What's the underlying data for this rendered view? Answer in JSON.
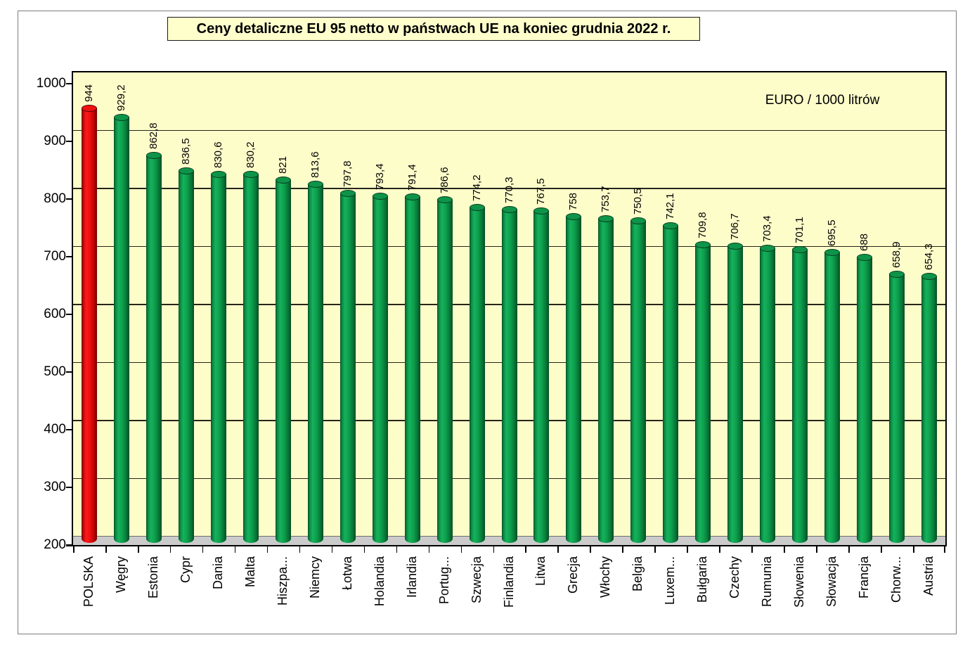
{
  "chart_data": {
    "type": "bar",
    "bar_style": "3d-cylinder-vertical",
    "title": "Ceny detaliczne EU 95 netto w państwach UE na koniec grudnia 2022 r.",
    "unit_label": "EURO / 1000 litrów",
    "xlabel": "",
    "ylabel": "",
    "ylim": [
      200,
      1000
    ],
    "yticks": [
      200,
      300,
      400,
      500,
      600,
      700,
      800,
      900,
      1000
    ],
    "grid": "horizontal",
    "legend_position": "none",
    "plot_background": "#fdfdca",
    "categories": [
      "POLSKA",
      "Węgry",
      "Estonia",
      "Cypr",
      "Dania",
      "Malta",
      "Hiszpa...",
      "Niemcy",
      "Łotwa",
      "Holandia",
      "Irlandia",
      "Portug...",
      "Szwecja",
      "Finlandia",
      "Litwa",
      "Grecja",
      "Włochy",
      "Belgia",
      "Luxem...",
      "Bułgaria",
      "Czechy",
      "Rumunia",
      "Słowenia",
      "Słowacja",
      "Francja",
      "Chorw...",
      "Austria"
    ],
    "values": [
      944,
      929.2,
      862.8,
      836.5,
      830.6,
      830.2,
      821,
      813.6,
      797.8,
      793.4,
      791.4,
      786.6,
      774.2,
      770.3,
      767.5,
      758,
      753.7,
      750.5,
      742.1,
      709.8,
      706.7,
      703.4,
      701.1,
      695.5,
      688,
      658.9,
      654.3
    ],
    "value_labels": [
      "944",
      "929,2",
      "862,8",
      "836,5",
      "830,6",
      "830,2",
      "821",
      "813,6",
      "797,8",
      "793,4",
      "791,4",
      "786,6",
      "774,2",
      "770,3",
      "767,5",
      "758",
      "753,7",
      "750,5",
      "742,1",
      "709,8",
      "706,7",
      "703,4",
      "701,1",
      "695,5",
      "688",
      "658,9",
      "654,3"
    ],
    "bar_colors": [
      "red",
      "green",
      "green",
      "green",
      "green",
      "green",
      "green",
      "green",
      "green",
      "green",
      "green",
      "green",
      "green",
      "green",
      "green",
      "green",
      "green",
      "green",
      "green",
      "green",
      "green",
      "green",
      "green",
      "green",
      "green",
      "green",
      "green"
    ],
    "colors": {
      "bar_green": "#0ea04e",
      "bar_red": "#ee0e0e",
      "plot_bg": "#fdfdca",
      "floor_gray": "#cbcbcb",
      "grid": "#26261c",
      "title_bg": "#ffffcc"
    },
    "highlight_category": "POLSKA"
  }
}
